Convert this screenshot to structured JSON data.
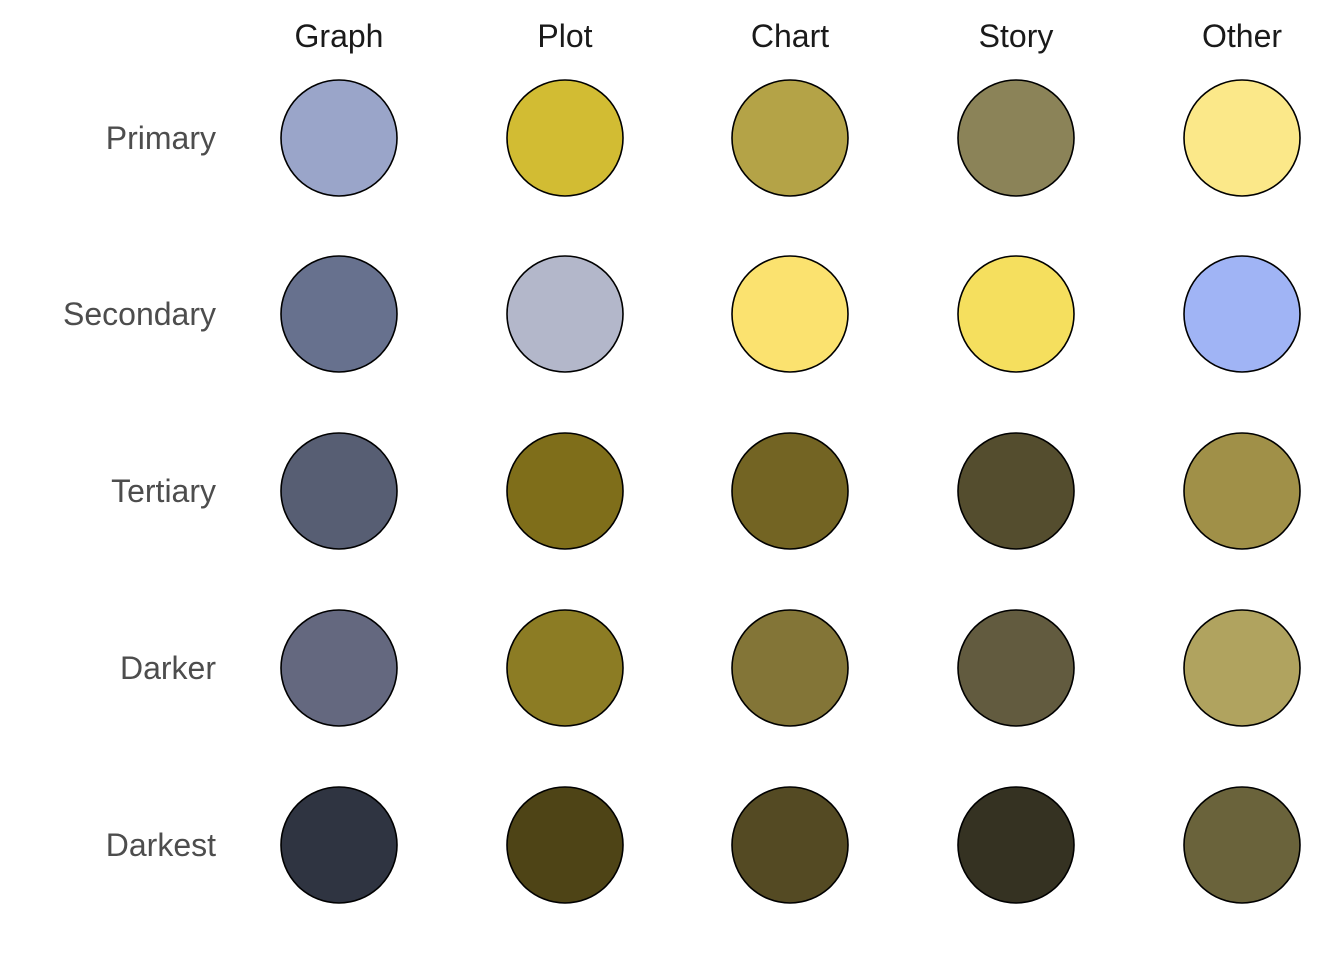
{
  "chart_data": {
    "type": "heatmap",
    "title": "",
    "xlabel": "",
    "ylabel": "",
    "columns": [
      "Graph",
      "Plot",
      "Chart",
      "Story",
      "Other"
    ],
    "rows": [
      "Primary",
      "Secondary",
      "Tertiary",
      "Darker",
      "Darkest"
    ],
    "grid": false,
    "legend": "none",
    "colors": [
      [
        "#9aa5c9",
        "#d2bc33",
        "#b4a347",
        "#8b8358",
        "#fbe889"
      ],
      [
        "#67718e",
        "#b3b7ca",
        "#fbe26f",
        "#f5df5e",
        "#a0b4f5"
      ],
      [
        "#575e73",
        "#7f6e1a",
        "#736423",
        "#544d2e",
        "#a09048"
      ],
      [
        "#64687f",
        "#8c7c24",
        "#837537",
        "#625b3f",
        "#b0a35f"
      ],
      [
        "#2f3441",
        "#4e4416",
        "#544a23",
        "#353222",
        "#6a633b"
      ]
    ]
  }
}
